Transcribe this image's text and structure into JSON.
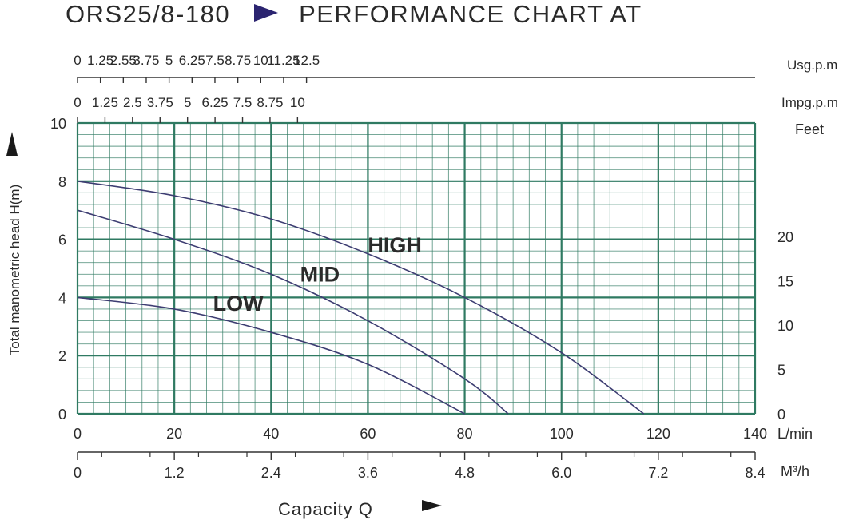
{
  "chart_data": {
    "type": "line",
    "title_model": "ORS25/8-180",
    "title_text": "PERFORMANCE CHART AT",
    "ylabel": "Total manometric head H(m)",
    "xlabel": "Capacity Q",
    "xlim": [
      0,
      140
    ],
    "ylim": [
      0,
      10
    ],
    "grid": true,
    "x_ticks": [
      "0",
      "20",
      "40",
      "60",
      "80",
      "100",
      "120",
      "140"
    ],
    "x_unit": "L/min",
    "y_ticks": [
      "0",
      "2",
      "4",
      "6",
      "8",
      "10"
    ],
    "m3h_ticks": [
      "0",
      "1.2",
      "2.4",
      "3.6",
      "4.8",
      "6.0",
      "7.2",
      "8.4"
    ],
    "m3h_unit": "M³/h",
    "usg_ticks": [
      "0",
      "1.25",
      "2.55",
      "3.75",
      "5",
      "6.25",
      "7.5",
      "8.75",
      "10",
      "11.25",
      "12.5"
    ],
    "usg_unit": "Usg.p.m",
    "impg_ticks": [
      "0",
      "1.25",
      "2.5",
      "3.75",
      "5",
      "6.25",
      "7.5",
      "8.75",
      "10"
    ],
    "impg_unit": "Impg.p.m",
    "feet_ticks": [
      "0",
      "5",
      "10",
      "15",
      "20"
    ],
    "feet_unit": "Feet",
    "series": [
      {
        "name": "HIGH",
        "x": [
          0,
          20,
          40,
          60,
          80,
          100,
          117
        ],
        "y": [
          8,
          7.5,
          6.7,
          5.5,
          4,
          2.1,
          0
        ]
      },
      {
        "name": "MID",
        "x": [
          0,
          20,
          40,
          60,
          80,
          89
        ],
        "y": [
          7,
          6,
          4.8,
          3.2,
          1.2,
          0
        ]
      },
      {
        "name": "LOW",
        "x": [
          0,
          20,
          40,
          60,
          80
        ],
        "y": [
          4,
          3.6,
          2.8,
          1.7,
          0
        ]
      }
    ],
    "line_color": "#3d3d72",
    "grid_color": "#2f7a62"
  }
}
